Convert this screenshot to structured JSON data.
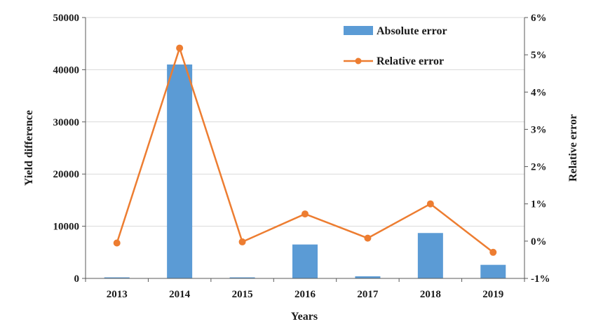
{
  "chart_data": {
    "type": "bar",
    "title": "",
    "xlabel": "Years",
    "ylabel": "Yield difference",
    "y2label": "Relative error",
    "categories": [
      "2013",
      "2014",
      "2015",
      "2016",
      "2017",
      "2018",
      "2019"
    ],
    "ylim": [
      0,
      50000
    ],
    "yticks": [
      "0",
      "10000",
      "20000",
      "30000",
      "40000",
      "50000"
    ],
    "y2lim": [
      -1,
      6
    ],
    "y2ticks": [
      "-1%",
      "0%",
      "1%",
      "2%",
      "3%",
      "4%",
      "5%",
      "6%"
    ],
    "grid": true,
    "legend_position": "top-right",
    "series": [
      {
        "name": "Absolute error",
        "type": "bar",
        "axis": "left",
        "color": "#5b9bd5",
        "values": [
          200,
          41000,
          200,
          6500,
          400,
          8700,
          2600
        ]
      },
      {
        "name": "Relative error",
        "type": "line",
        "axis": "right",
        "color": "#ed7d31",
        "values": [
          -0.05,
          5.18,
          -0.02,
          0.73,
          0.08,
          1.0,
          -0.3
        ]
      }
    ]
  }
}
